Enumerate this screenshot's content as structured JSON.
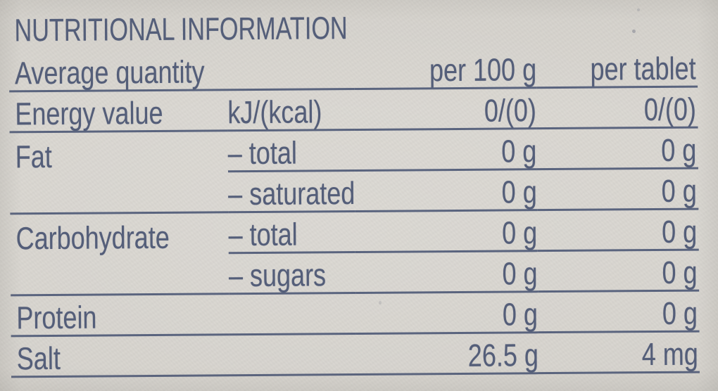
{
  "title": "NUTRITIONAL INFORMATION",
  "colors": {
    "paper": "#d6d3cd",
    "ink": "#545e79",
    "rule": "#5a647e"
  },
  "table": {
    "header": {
      "label": "Average quantity",
      "per_100g": "per 100 g",
      "per_tablet": "per tablet"
    },
    "rows": [
      {
        "name": "Energy value",
        "sub": "kJ/(kcal)",
        "per_100g": "0/(0)",
        "per_tablet": "0/(0)",
        "rule": "full"
      },
      {
        "name": "Fat",
        "sub": "– total",
        "per_100g": "0 g",
        "per_tablet": "0 g",
        "rule": "partial"
      },
      {
        "name": "",
        "sub": "– saturated",
        "per_100g": "0 g",
        "per_tablet": "0 g",
        "rule": "full"
      },
      {
        "name": "Carbohydrate",
        "sub": "– total",
        "per_100g": "0 g",
        "per_tablet": "0 g",
        "rule": "partial"
      },
      {
        "name": "",
        "sub": "– sugars",
        "per_100g": "0 g",
        "per_tablet": "0 g",
        "rule": "full"
      },
      {
        "name": "Protein",
        "sub": "",
        "per_100g": "0 g",
        "per_tablet": "0 g",
        "rule": "full"
      },
      {
        "name": "Salt",
        "sub": "",
        "per_100g": "26.5 g",
        "per_tablet": "4 mg",
        "rule": "full"
      }
    ]
  }
}
